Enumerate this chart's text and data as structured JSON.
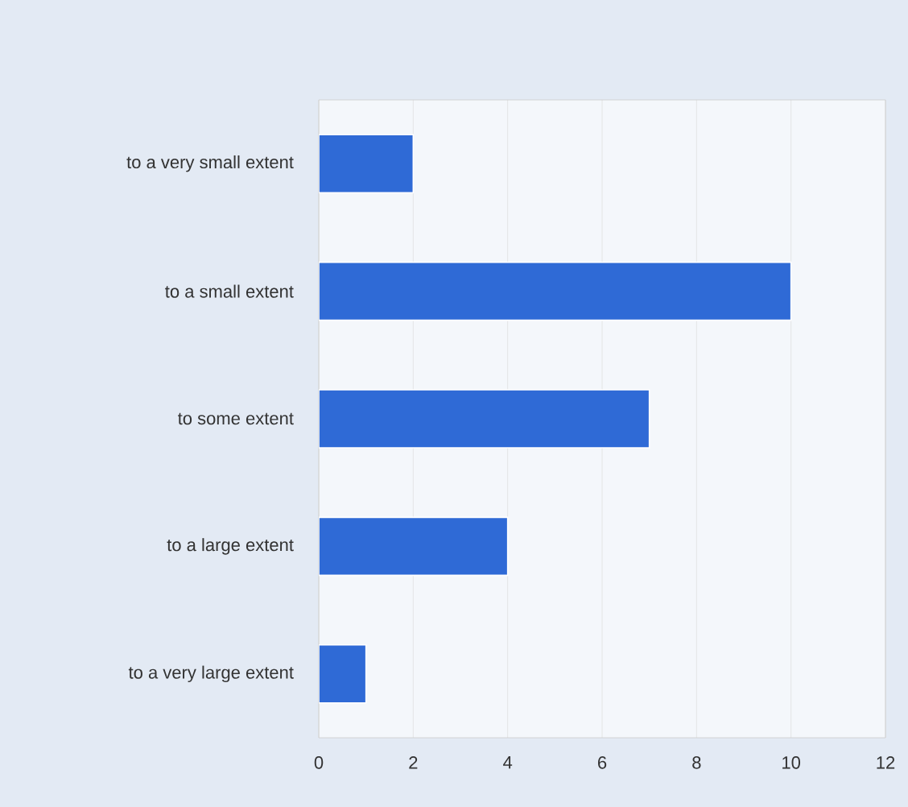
{
  "chart_data": {
    "type": "bar",
    "orientation": "horizontal",
    "categories": [
      "to a very small extent",
      "to a small extent",
      "to some extent",
      "to a large extent",
      "to a very large extent"
    ],
    "values": [
      2,
      10,
      7,
      4,
      1
    ],
    "color": "#2f6ad6",
    "xlim": [
      0,
      12
    ],
    "xticks": [
      0,
      2,
      4,
      6,
      8,
      10,
      12
    ],
    "grid": "x"
  }
}
